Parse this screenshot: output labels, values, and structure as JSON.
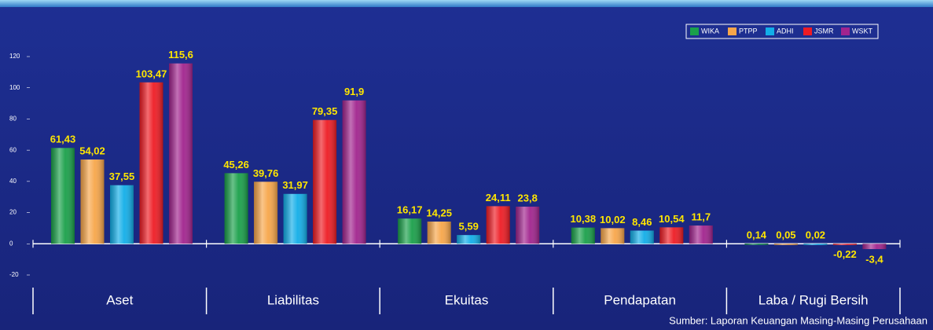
{
  "chart_data": {
    "type": "bar",
    "categories": [
      "Aset",
      "Liabilitas",
      "Ekuitas",
      "Pendapatan",
      "Laba / Rugi Bersih"
    ],
    "series": [
      {
        "name": "WIKA",
        "color": "#1aa04a",
        "values": [
          61.43,
          45.26,
          16.17,
          10.38,
          0.14
        ],
        "value_labels": [
          "61,43",
          "45,26",
          "16,17",
          "10,38",
          "0,14"
        ]
      },
      {
        "name": "PTPP",
        "color": "#f7a64a",
        "values": [
          54.02,
          39.76,
          14.25,
          10.02,
          0.05
        ],
        "value_labels": [
          "54,02",
          "39,76",
          "14,25",
          "10,02",
          "0,05"
        ]
      },
      {
        "name": "ADHI",
        "color": "#12aee8",
        "values": [
          37.55,
          31.97,
          5.59,
          8.46,
          0.02
        ],
        "value_labels": [
          "37,55",
          "31,97",
          "5,59",
          "8,46",
          "0,02"
        ]
      },
      {
        "name": "JSMR",
        "color": "#ee1c24",
        "values": [
          103.47,
          79.35,
          24.11,
          10.54,
          -0.22
        ],
        "value_labels": [
          "103,47",
          "79,35",
          "24,11",
          "10,54",
          "-0,22"
        ]
      },
      {
        "name": "WSKT",
        "color": "#a1248e",
        "values": [
          115.6,
          91.9,
          23.8,
          11.7,
          -3.4
        ],
        "value_labels": [
          "115,6",
          "91,9",
          "23,8",
          "11,7",
          "-3,4"
        ]
      }
    ],
    "ylim": [
      -20,
      120
    ],
    "yticks": [
      -20,
      0,
      20,
      40,
      60,
      80,
      100,
      120
    ],
    "legend": "top-right",
    "source": "Sumber: Laporan Keuangan Masing-Masing Perusahaan"
  }
}
